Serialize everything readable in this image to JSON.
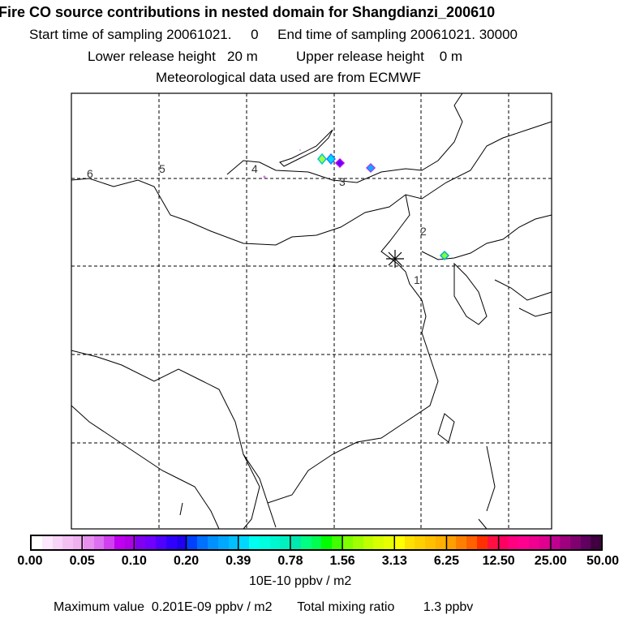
{
  "title": "Fire CO source contributions in nested domain for Shangdianzi_200610",
  "line1": "Start time of sampling 20061021.     0     End time of sampling 20061021. 30000",
  "line2": "Lower release height   20 m          Upper release height    0 m",
  "line3": "Meteorological data used are from ECMWF",
  "map": {
    "track_labels": [
      "1",
      "2",
      "3",
      "4",
      "5",
      "6"
    ],
    "station_marker": "asterisk-icon",
    "grid": "dashed"
  },
  "colorbar": {
    "ticks": [
      "0.00",
      "0.05",
      "0.10",
      "0.20",
      "0.39",
      "0.78",
      "1.56",
      "3.13",
      "6.25",
      "12.50",
      "25.00",
      "50.00"
    ],
    "unit": "10E-10 ppbv / m2",
    "colors": [
      "#ffffff",
      "#fde8fd",
      "#f8d4f8",
      "#f4c0f4",
      "#f0b0f0",
      "#e890f0",
      "#dc70f0",
      "#d040f0",
      "#c000f0",
      "#b000e8",
      "#8000f0",
      "#7000ff",
      "#5000ff",
      "#3000ff",
      "#2000f0",
      "#0040ff",
      "#0070ff",
      "#0090ff",
      "#00a8ff",
      "#00c0ff",
      "#00d8ff",
      "#00fff0",
      "#00ffe0",
      "#00f8d0",
      "#00f0c0",
      "#00e8b0",
      "#00ff80",
      "#00ff50",
      "#00ff00",
      "#40ff00",
      "#80ff00",
      "#a0ff00",
      "#c0ff00",
      "#d8ff00",
      "#e8ff00",
      "#ffff00",
      "#ffe000",
      "#ffd000",
      "#ffc000",
      "#ffb000",
      "#ffa000",
      "#ff8000",
      "#ff6000",
      "#ff3000",
      "#ff1040",
      "#ff0060",
      "#ff0080",
      "#ff0090",
      "#f00090",
      "#e00090",
      "#c00090",
      "#a00080",
      "#800070",
      "#600060",
      "#400040"
    ]
  },
  "footer": "Maximum value  0.201E-09 ppbv / m2       Total mixing ratio        1.3 ppbv"
}
